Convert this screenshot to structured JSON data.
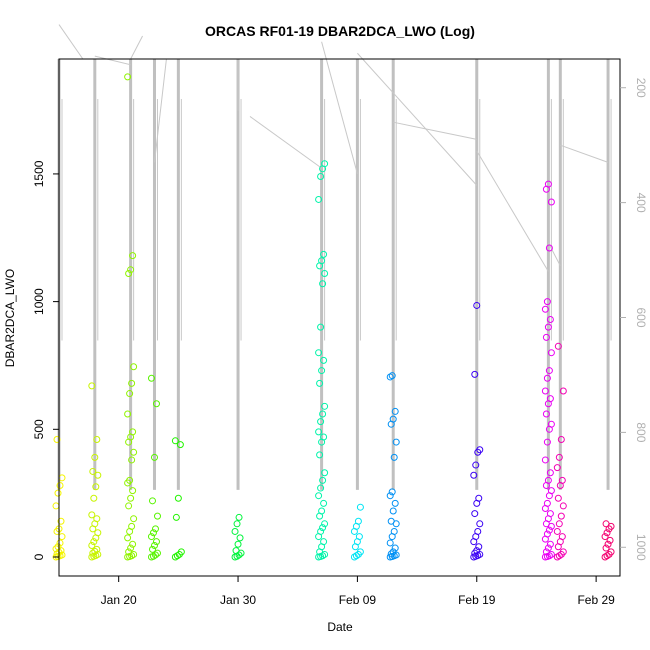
{
  "chart_data": {
    "type": "scatter",
    "title": "ORCAS RF01-19 DBAR2DCA_LWO (Log)",
    "xlabel": "Date",
    "ylabel": "DBAR2DCA_LWO",
    "x_axis": {
      "type": "date",
      "range": [
        "2016-01-15",
        "2016-03-02"
      ],
      "ticks": [
        "Jan 20",
        "Jan 30",
        "Feb 09",
        "Feb 19",
        "Feb 29"
      ]
    },
    "y_axis": {
      "range": [
        0,
        1950
      ],
      "ticks": [
        0,
        500,
        1000,
        1500
      ]
    },
    "secondary_y_axis": {
      "side": "right",
      "reversed": true,
      "range": [
        1050,
        150
      ],
      "ticks": [
        200,
        400,
        600,
        800,
        1000
      ],
      "color": "#b0b0b0"
    },
    "grid": false,
    "marker": "open-circle",
    "flights": [
      {
        "date": "2016-01-15",
        "color": "#f4f400",
        "values": [
          0,
          2,
          5,
          8,
          12,
          18,
          25,
          32,
          40,
          55,
          80,
          100,
          110,
          140,
          200,
          250,
          280,
          310,
          460
        ]
      },
      {
        "date": "2016-01-18",
        "color": "#c8f400",
        "values": [
          0,
          3,
          6,
          10,
          15,
          22,
          30,
          45,
          60,
          75,
          95,
          110,
          130,
          150,
          165,
          230,
          275,
          320,
          335,
          390,
          460,
          670
        ]
      },
      {
        "date": "2016-01-21",
        "color": "#90f400",
        "values": [
          0,
          2,
          5,
          10,
          20,
          35,
          50,
          75,
          100,
          120,
          150,
          200,
          230,
          260,
          290,
          300,
          380,
          410,
          450,
          470,
          490,
          560,
          640,
          680,
          745,
          1110,
          1125,
          1180,
          1880
        ]
      },
      {
        "date": "2016-01-23",
        "color": "#58f400",
        "values": [
          0,
          3,
          8,
          15,
          30,
          45,
          60,
          80,
          95,
          110,
          160,
          220,
          390,
          600,
          700
        ]
      },
      {
        "date": "2016-01-25",
        "color": "#22f400",
        "values": [
          0,
          5,
          10,
          20,
          155,
          230,
          440,
          455
        ]
      },
      {
        "date": "2016-01-30",
        "color": "#00f43c",
        "values": [
          0,
          3,
          8,
          15,
          25,
          50,
          75,
          100,
          130,
          155
        ]
      },
      {
        "date": "2016-02-06",
        "color": "#00f4aa",
        "values": [
          0,
          2,
          5,
          10,
          20,
          40,
          60,
          80,
          100,
          115,
          130,
          160,
          180,
          210,
          240,
          270,
          300,
          330,
          400,
          450,
          470,
          490,
          530,
          560,
          590,
          680,
          730,
          770,
          800,
          900,
          1070,
          1110,
          1140,
          1160,
          1185,
          1400,
          1490,
          1520,
          1540
        ]
      },
      {
        "date": "2016-02-09",
        "color": "#00e4f4",
        "values": [
          0,
          5,
          10,
          20,
          40,
          60,
          80,
          100,
          120,
          140,
          195
        ]
      },
      {
        "date": "2016-02-12",
        "color": "#0090f4",
        "values": [
          0,
          2,
          5,
          8,
          12,
          20,
          35,
          55,
          80,
          100,
          130,
          140,
          180,
          210,
          240,
          255,
          390,
          450,
          520,
          540,
          570,
          705,
          710
        ]
      },
      {
        "date": "2016-02-19",
        "color": "#3a00f4",
        "values": [
          0,
          3,
          6,
          10,
          15,
          25,
          40,
          60,
          80,
          100,
          130,
          170,
          210,
          230,
          320,
          360,
          410,
          420,
          715,
          985
        ]
      },
      {
        "date": "2016-02-25",
        "color": "#ea00f4",
        "values": [
          0,
          2,
          5,
          10,
          20,
          35,
          50,
          70,
          90,
          105,
          120,
          130,
          150,
          170,
          190,
          210,
          240,
          260,
          280,
          300,
          330,
          380,
          450,
          500,
          520,
          560,
          600,
          620,
          650,
          700,
          730,
          800,
          860,
          900,
          930,
          970,
          1000,
          1210,
          1390,
          1440,
          1460
        ]
      },
      {
        "date": "2016-02-26",
        "color": "#f400b4",
        "values": [
          0,
          5,
          10,
          20,
          40,
          60,
          80,
          100,
          130,
          160,
          200,
          230,
          280,
          300,
          350,
          390,
          460,
          650,
          825
        ]
      },
      {
        "date": "2016-03-01",
        "color": "#f40070",
        "values": [
          0,
          5,
          10,
          20,
          35,
          50,
          65,
          80,
          95,
          110,
          120,
          130
        ]
      }
    ]
  }
}
